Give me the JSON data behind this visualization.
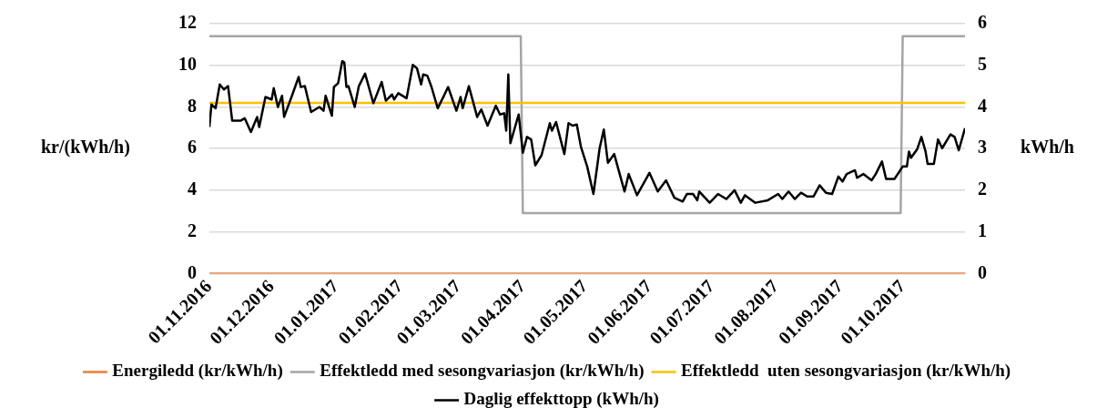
{
  "chart_data": {
    "type": "line",
    "ylabel": "kr/(kWh/h)",
    "y2label": "kWh/h",
    "xlim": [
      "2016-11-01",
      "2017-10-31"
    ],
    "xticks": [
      {
        "value": "2016-11-01",
        "label": "01.11.2016"
      },
      {
        "value": "2016-12-01",
        "label": "01.12.2016"
      },
      {
        "value": "2017-01-01",
        "label": "01.01.2017"
      },
      {
        "value": "2017-02-01",
        "label": "01.02.2017"
      },
      {
        "value": "2017-03-01",
        "label": "01.03.2017"
      },
      {
        "value": "2017-04-01",
        "label": "01.04.2017"
      },
      {
        "value": "2017-05-01",
        "label": "01.05.2017"
      },
      {
        "value": "2017-06-01",
        "label": "01.06.2017"
      },
      {
        "value": "2017-07-01",
        "label": "01.07.2017"
      },
      {
        "value": "2017-08-01",
        "label": "01.08.2017"
      },
      {
        "value": "2017-09-01",
        "label": "01.09.2017"
      },
      {
        "value": "2017-10-01",
        "label": "01.10.2017"
      }
    ],
    "ylim": [
      0,
      12
    ],
    "yticks": [
      0,
      2,
      4,
      6,
      8,
      10,
      12
    ],
    "y2lim": [
      0,
      6
    ],
    "y2ticks": [
      0,
      1,
      2,
      3,
      4,
      5,
      6
    ],
    "grid": "y",
    "legend": "bottom",
    "marker": "none",
    "line_style": "solid",
    "series": [
      {
        "name": "Energiledd (kr/kWh/h)",
        "color": "#ed7d31",
        "x": [
          "2016-11-01",
          "2017-10-31"
        ],
        "values": [
          0,
          0
        ]
      },
      {
        "name": "Effektledd med sesongvariasjon (kr/kWh/h)",
        "color": "#a5a5a5",
        "x": [
          "2016-11-01",
          "2017-03-31",
          "2017-04-01",
          "2017-09-30",
          "2017-10-01",
          "2017-10-31"
        ],
        "values": [
          11.4,
          11.4,
          2.9,
          2.9,
          11.4,
          11.4
        ]
      },
      {
        "name": "Effektledd  uten sesongvariasjon (kr/kWh/h)",
        "color": "#ffc000",
        "x": [
          "2016-11-01",
          "2017-10-31"
        ],
        "values": [
          8.2,
          8.2
        ]
      },
      {
        "name": "Daglig effekttopp (kWh/h)",
        "color": "#000000",
        "axis": "y2",
        "x": [
          "2016-11-01",
          "2016-11-02",
          "2016-11-04",
          "2016-11-06",
          "2016-11-08",
          "2016-11-10",
          "2016-11-12",
          "2016-11-16",
          "2016-11-18",
          "2016-11-21",
          "2016-11-24",
          "2016-11-25",
          "2016-11-28",
          "2016-12-01",
          "2016-12-02",
          "2016-12-04",
          "2016-12-06",
          "2016-12-07",
          "2016-12-11",
          "2016-12-14",
          "2016-12-15",
          "2016-12-17",
          "2016-12-20",
          "2016-12-24",
          "2016-12-26",
          "2016-12-27",
          "2016-12-30",
          "2016-12-31",
          "2017-01-02",
          "2017-01-04",
          "2017-01-05",
          "2017-01-06",
          "2017-01-07",
          "2017-01-10",
          "2017-01-12",
          "2017-01-15",
          "2017-01-19",
          "2017-01-23",
          "2017-01-25",
          "2017-01-28",
          "2017-01-29",
          "2017-01-31",
          "2017-02-04",
          "2017-02-07",
          "2017-02-09",
          "2017-02-11",
          "2017-02-12",
          "2017-02-14",
          "2017-02-16",
          "2017-02-19",
          "2017-02-22",
          "2017-02-24",
          "2017-02-28",
          "2017-03-02",
          "2017-03-03",
          "2017-03-06",
          "2017-03-10",
          "2017-03-12",
          "2017-03-15",
          "2017-03-19",
          "2017-03-21",
          "2017-03-23",
          "2017-03-24",
          "2017-03-25",
          "2017-03-26",
          "2017-03-30",
          "2017-04-01",
          "2017-04-03",
          "2017-04-05",
          "2017-04-07",
          "2017-04-10",
          "2017-04-14",
          "2017-04-15",
          "2017-04-17",
          "2017-04-21",
          "2017-04-23",
          "2017-04-25",
          "2017-04-27",
          "2017-04-29",
          "2017-05-02",
          "2017-05-05",
          "2017-05-08",
          "2017-05-10",
          "2017-05-12",
          "2017-05-15",
          "2017-05-20",
          "2017-05-22",
          "2017-05-26",
          "2017-05-28",
          "2017-05-31",
          "2017-06-01",
          "2017-06-05",
          "2017-06-09",
          "2017-06-13",
          "2017-06-17",
          "2017-06-19",
          "2017-06-22",
          "2017-06-24",
          "2017-06-25",
          "2017-06-30",
          "2017-07-04",
          "2017-07-08",
          "2017-07-12",
          "2017-07-15",
          "2017-07-17",
          "2017-07-22",
          "2017-07-28",
          "2017-08-02",
          "2017-08-04",
          "2017-08-07",
          "2017-08-10",
          "2017-08-13",
          "2017-08-16",
          "2017-08-19",
          "2017-08-22",
          "2017-08-25",
          "2017-08-28",
          "2017-08-31",
          "2017-09-02",
          "2017-09-04",
          "2017-09-08",
          "2017-09-09",
          "2017-09-12",
          "2017-09-16",
          "2017-09-18",
          "2017-09-21",
          "2017-09-23",
          "2017-09-27",
          "2017-09-29",
          "2017-10-01",
          "2017-10-03",
          "2017-10-04",
          "2017-10-05",
          "2017-10-08",
          "2017-10-10",
          "2017-10-12",
          "2017-10-13",
          "2017-10-16",
          "2017-10-18",
          "2017-10-20",
          "2017-10-24",
          "2017-10-26",
          "2017-10-28",
          "2017-10-31"
        ],
        "values": [
          3.52,
          4.06,
          3.97,
          4.54,
          4.42,
          4.5,
          3.67,
          3.67,
          3.73,
          3.4,
          3.76,
          3.52,
          4.24,
          4.18,
          4.45,
          4.0,
          4.27,
          3.76,
          4.3,
          4.72,
          4.48,
          4.5,
          3.88,
          4.0,
          3.91,
          4.27,
          3.79,
          4.48,
          4.57,
          5.1,
          5.07,
          4.48,
          4.5,
          4.0,
          4.5,
          4.8,
          4.09,
          4.6,
          4.15,
          4.3,
          4.18,
          4.33,
          4.21,
          5.01,
          4.93,
          4.54,
          4.78,
          4.75,
          4.48,
          3.97,
          4.27,
          4.48,
          3.91,
          4.24,
          3.97,
          4.5,
          3.76,
          3.94,
          3.55,
          4.03,
          3.82,
          3.85,
          3.43,
          4.78,
          3.13,
          3.82,
          2.9,
          3.28,
          3.22,
          2.6,
          2.84,
          3.61,
          3.43,
          3.64,
          2.87,
          3.61,
          3.55,
          3.58,
          3.04,
          2.57,
          1.91,
          3.01,
          3.46,
          2.66,
          2.87,
          1.97,
          2.39,
          1.88,
          2.06,
          2.33,
          2.42,
          1.97,
          2.24,
          1.82,
          1.73,
          1.91,
          1.91,
          1.76,
          1.97,
          1.7,
          1.91,
          1.79,
          2.0,
          1.7,
          1.88,
          1.7,
          1.76,
          1.91,
          1.79,
          1.97,
          1.79,
          1.94,
          1.85,
          1.85,
          2.12,
          1.94,
          1.91,
          2.33,
          2.21,
          2.39,
          2.48,
          2.3,
          2.39,
          2.24,
          2.39,
          2.69,
          2.27,
          2.27,
          2.42,
          2.57,
          2.57,
          2.93,
          2.78,
          2.99,
          3.28,
          2.93,
          2.63,
          2.63,
          3.22,
          3.01,
          3.34,
          3.28,
          2.96,
          3.49
        ]
      }
    ]
  }
}
